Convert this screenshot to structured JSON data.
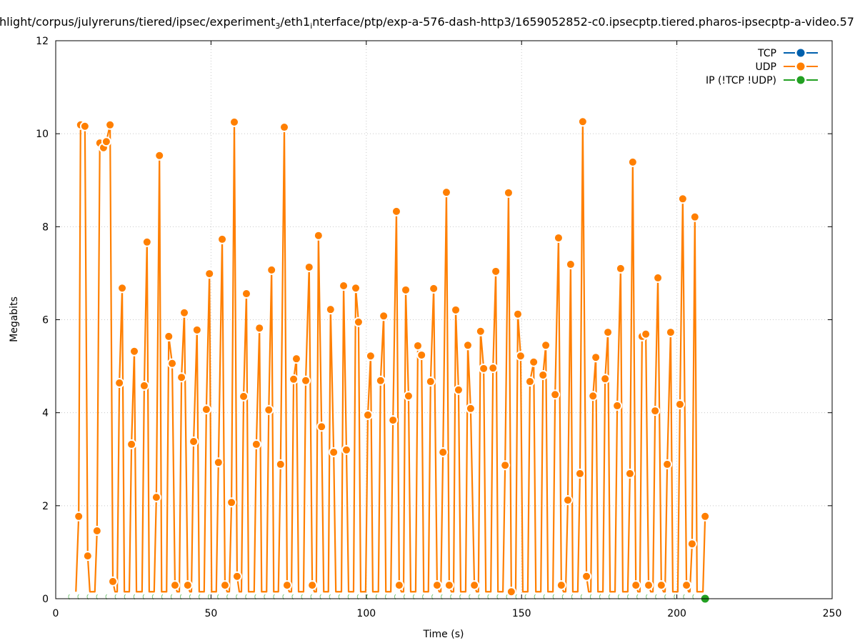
{
  "chart_data": {
    "type": "line",
    "title": "hlight/corpus/julyreruns/tiered/ipsec/experiment_3/eth1_interface/ptp/exp-a-576-dash-http3/1659052852-c0.ipsecptp.tiered.pharos-ipsecptp-a-video.57",
    "xlabel": "Time (s)",
    "ylabel": "Megabits",
    "xlim": [
      0,
      250
    ],
    "ylim": [
      0,
      12
    ],
    "xticks": [
      "0",
      "50",
      "100",
      "150",
      "200",
      "250"
    ],
    "yticks": [
      "0",
      "2",
      "4",
      "6",
      "8",
      "10",
      "12"
    ],
    "grid": true,
    "legend_position": "top-right",
    "series": [
      {
        "name": "TCP",
        "color": "#0060ad",
        "x": [],
        "y": []
      },
      {
        "name": "UDP",
        "color": "#ff7f00",
        "dip_value": 0.15,
        "x": [
          7.4,
          8.0,
          9.4,
          10.3,
          13.3,
          14.2,
          15.4,
          16.3,
          17.5,
          18.4,
          20.5,
          21.4,
          24.4,
          25.3,
          28.5,
          29.4,
          32.4,
          33.4,
          36.4,
          37.5,
          38.4,
          40.5,
          41.4,
          42.5,
          44.4,
          45.5,
          48.5,
          49.5,
          52.4,
          53.6,
          54.5,
          56.6,
          57.5,
          58.4,
          60.5,
          61.4,
          64.6,
          65.6,
          68.6,
          69.5,
          72.4,
          73.6,
          74.5,
          76.6,
          77.5,
          80.5,
          81.6,
          82.6,
          84.6,
          85.6,
          88.5,
          89.5,
          92.7,
          93.6,
          96.6,
          97.5,
          100.5,
          101.4,
          104.6,
          105.6,
          108.6,
          109.7,
          110.6,
          112.7,
          113.6,
          116.6,
          117.8,
          120.7,
          121.7,
          122.8,
          124.7,
          125.8,
          126.7,
          128.8,
          129.7,
          132.7,
          133.6,
          134.8,
          136.8,
          137.8,
          140.8,
          141.7,
          144.7,
          145.8,
          146.7,
          148.8,
          149.7,
          152.7,
          153.9,
          156.9,
          157.8,
          160.8,
          161.9,
          162.8,
          164.9,
          165.8,
          168.8,
          169.7,
          170.9,
          173.0,
          173.9,
          176.9,
          177.8,
          180.8,
          181.9,
          184.9,
          185.8,
          186.8,
          188.8,
          190.0,
          190.9,
          193.0,
          193.9,
          195.0,
          196.9,
          198.0,
          201.0,
          201.9,
          203.1,
          204.9,
          205.8,
          209.1
        ],
        "y": [
          1.77,
          10.19,
          10.16,
          0.92,
          1.46,
          9.8,
          9.7,
          9.83,
          10.19,
          0.37,
          4.64,
          6.68,
          3.32,
          5.32,
          4.58,
          7.67,
          2.18,
          9.53,
          5.64,
          5.06,
          0.29,
          4.76,
          6.15,
          0.29,
          3.38,
          5.78,
          4.07,
          6.99,
          2.93,
          7.73,
          0.29,
          2.07,
          10.25,
          0.48,
          4.35,
          6.56,
          3.32,
          5.82,
          4.06,
          7.07,
          2.89,
          10.14,
          0.29,
          4.72,
          5.16,
          4.69,
          7.13,
          0.29,
          7.81,
          3.7,
          6.22,
          3.15,
          6.73,
          3.2,
          6.68,
          5.95,
          3.95,
          5.22,
          4.69,
          6.08,
          3.84,
          8.33,
          0.29,
          6.64,
          4.36,
          5.44,
          5.24,
          4.67,
          6.67,
          0.29,
          3.15,
          8.74,
          0.29,
          6.21,
          4.49,
          5.45,
          4.09,
          0.29,
          5.75,
          4.95,
          4.96,
          7.04,
          2.87,
          8.73,
          0.15,
          6.12,
          5.22,
          4.67,
          5.09,
          4.81,
          5.45,
          4.39,
          7.76,
          0.29,
          2.12,
          7.19,
          2.69,
          10.26,
          0.48,
          4.36,
          5.19,
          4.73,
          5.73,
          4.15,
          7.1,
          2.69,
          9.39,
          0.29,
          5.64,
          5.69,
          0.29,
          4.04,
          6.9,
          0.29,
          2.89,
          5.73,
          4.18,
          8.6,
          0.29,
          1.18,
          8.21,
          1.77
        ]
      },
      {
        "name": "IP (!TCP  !UDP)",
        "color": "#22a022",
        "x": [
          4,
          7,
          10,
          13,
          16,
          19,
          22,
          25,
          28,
          31,
          34,
          37,
          40,
          43,
          46,
          49,
          52,
          55,
          58,
          61,
          64,
          67,
          70,
          73,
          76,
          79,
          82,
          85,
          88,
          91,
          94,
          97,
          100,
          103,
          106,
          109,
          112,
          115,
          118,
          121,
          124,
          127,
          130,
          133,
          136,
          139,
          142,
          145,
          148,
          151,
          154,
          157,
          160,
          163,
          166,
          169,
          172,
          175,
          178,
          181,
          184,
          187,
          190,
          193,
          196,
          199,
          202,
          205,
          209.1
        ],
        "y": [
          0,
          0,
          0,
          0,
          0,
          0,
          0,
          0,
          0,
          0,
          0,
          0,
          0,
          0,
          0,
          0,
          0,
          0,
          0,
          0,
          0,
          0,
          0,
          0,
          0,
          0,
          0,
          0,
          0,
          0,
          0,
          0,
          0,
          0,
          0,
          0,
          0,
          0,
          0,
          0,
          0,
          0,
          0,
          0,
          0,
          0,
          0,
          0,
          0,
          0,
          0,
          0,
          0,
          0,
          0,
          0,
          0,
          0,
          0,
          0,
          0,
          0,
          0,
          0,
          0,
          0,
          0,
          0,
          0
        ]
      }
    ]
  }
}
